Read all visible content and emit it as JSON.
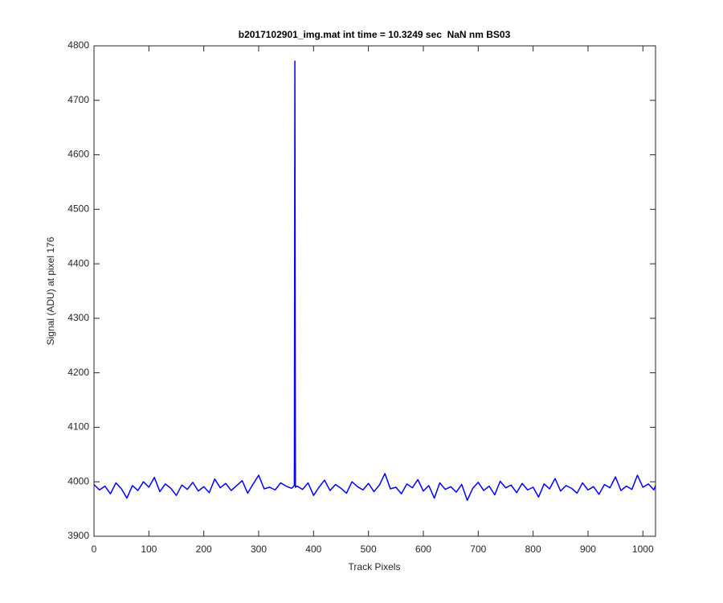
{
  "chart_data": {
    "type": "line",
    "title": "b2017102901_img.mat int time = 10.3249 sec  NaN nm BS03",
    "x_label": "Track Pixels",
    "y_label": "Signal (ADU) at pixel 176",
    "xlim": [
      0,
      1023
    ],
    "ylim": [
      3900,
      4800
    ],
    "xticks": [
      0,
      100,
      200,
      300,
      400,
      500,
      600,
      700,
      800,
      900,
      1000
    ],
    "yticks": [
      3900,
      4000,
      4100,
      4200,
      4300,
      4400,
      4500,
      4600,
      4700,
      4800
    ],
    "x": [
      0,
      10,
      20,
      30,
      40,
      50,
      60,
      70,
      80,
      90,
      100,
      110,
      120,
      130,
      140,
      150,
      160,
      170,
      180,
      190,
      200,
      210,
      220,
      230,
      240,
      250,
      260,
      270,
      280,
      290,
      300,
      310,
      320,
      330,
      340,
      350,
      360,
      365,
      366,
      367,
      370,
      380,
      390,
      400,
      410,
      420,
      430,
      440,
      450,
      460,
      470,
      480,
      490,
      500,
      510,
      520,
      530,
      540,
      550,
      560,
      570,
      580,
      590,
      600,
      610,
      620,
      630,
      640,
      650,
      660,
      670,
      680,
      690,
      700,
      710,
      720,
      730,
      740,
      750,
      760,
      770,
      780,
      790,
      800,
      810,
      820,
      830,
      840,
      850,
      860,
      870,
      880,
      890,
      900,
      910,
      920,
      930,
      940,
      950,
      960,
      970,
      980,
      990,
      1000,
      1010,
      1020,
      1023
    ],
    "series": [
      {
        "color": "#0000ff",
        "values": [
          3995,
          3985,
          3992,
          3978,
          3998,
          3987,
          3970,
          3993,
          3984,
          4000,
          3990,
          4008,
          3982,
          3996,
          3988,
          3975,
          3994,
          3986,
          3999,
          3983,
          3991,
          3980,
          4005,
          3989,
          3997,
          3984,
          3993,
          4002,
          3979,
          3996,
          4012,
          3987,
          3990,
          3985,
          3998,
          3992,
          3988,
          3993,
          4772,
          3990,
          3992,
          3986,
          3998,
          3975,
          3990,
          4003,
          3984,
          3995,
          3988,
          3979,
          4000,
          3991,
          3985,
          3997,
          3982,
          3994,
          4015,
          3987,
          3990,
          3978,
          3996,
          3989,
          4004,
          3983,
          3993,
          3970,
          3998,
          3986,
          3991,
          3981,
          3995,
          3966,
          3988,
          3999,
          3984,
          3992,
          3976,
          4001,
          3989,
          3994,
          3980,
          3997,
          3985,
          3990,
          3972,
          3996,
          3987,
          4006,
          3983,
          3993,
          3988,
          3979,
          3998,
          3985,
          3991,
          3977,
          3995,
          3989,
          4009,
          3984,
          3992,
          3986,
          4012,
          3990,
          3996,
          3985,
          3993
        ]
      }
    ]
  }
}
